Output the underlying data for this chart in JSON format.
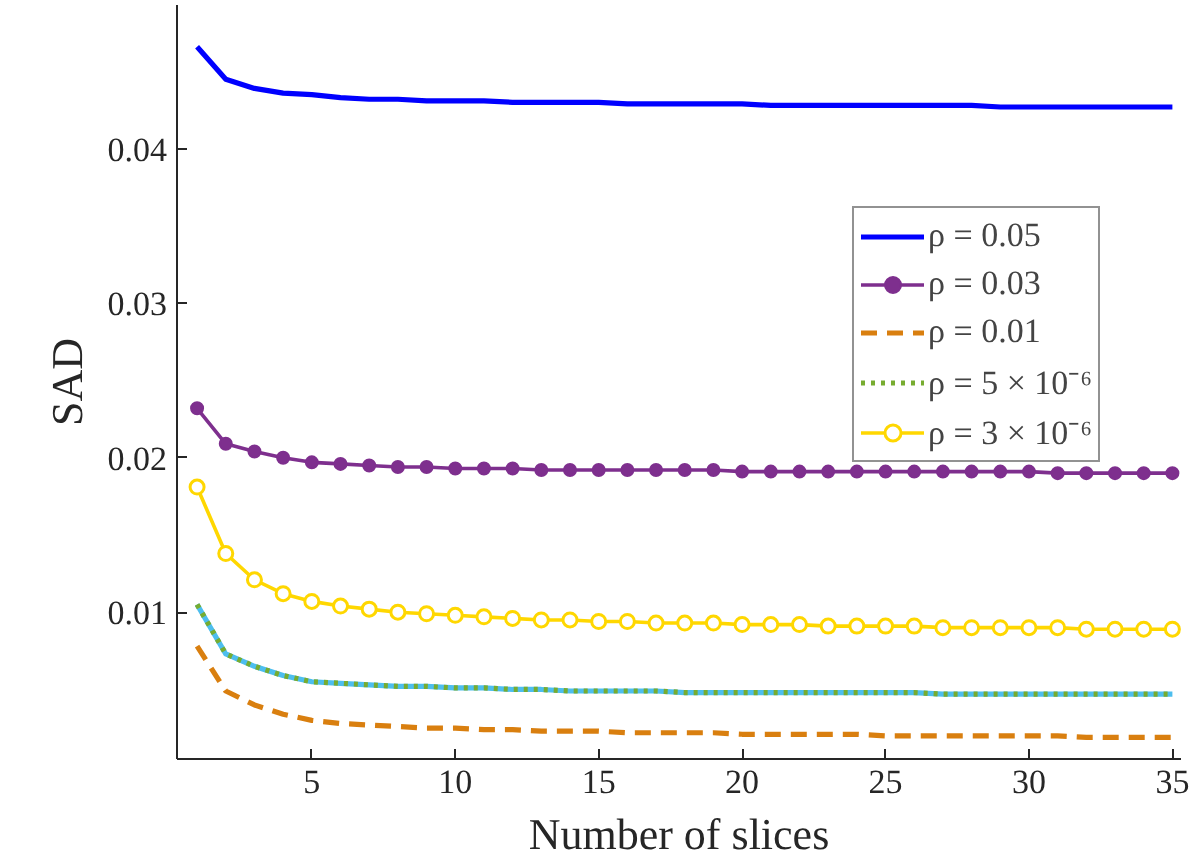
{
  "chart_data": {
    "type": "line",
    "xlabel": "Number of slices",
    "ylabel": "SAD",
    "x": [
      1,
      2,
      3,
      4,
      5,
      6,
      7,
      8,
      9,
      10,
      11,
      12,
      13,
      14,
      15,
      16,
      17,
      18,
      19,
      20,
      21,
      22,
      23,
      24,
      25,
      26,
      27,
      28,
      29,
      30,
      31,
      32,
      33,
      34,
      35
    ],
    "xlim": [
      0.3,
      35.3
    ],
    "ylim": [
      0.0005,
      0.0493
    ],
    "xticks": [
      5,
      10,
      15,
      20,
      25,
      30,
      35
    ],
    "yticks": [
      0.01,
      0.02,
      0.03,
      0.04
    ],
    "grid": false,
    "legend": "top right",
    "series": [
      {
        "name": "ρ = 0.05",
        "color": "#0000ff",
        "line_style": "solid",
        "marker": "none",
        "values": [
          0.0466,
          0.0445,
          0.0439,
          0.0436,
          0.0435,
          0.0433,
          0.0432,
          0.0432,
          0.0431,
          0.0431,
          0.0431,
          0.043,
          0.043,
          0.043,
          0.043,
          0.0429,
          0.0429,
          0.0429,
          0.0429,
          0.0429,
          0.0428,
          0.0428,
          0.0428,
          0.0428,
          0.0428,
          0.0428,
          0.0428,
          0.0428,
          0.0427,
          0.0427,
          0.0427,
          0.0427,
          0.0427,
          0.0427,
          0.0427
        ]
      },
      {
        "name": "ρ = 0.03",
        "color": "#7e2f8e",
        "line_style": "solid",
        "marker": "circle",
        "values": [
          0.0232,
          0.0209,
          0.0204,
          0.02,
          0.0197,
          0.0196,
          0.0195,
          0.0194,
          0.0194,
          0.0193,
          0.0193,
          0.0193,
          0.0192,
          0.0192,
          0.0192,
          0.0192,
          0.0192,
          0.0192,
          0.0192,
          0.0191,
          0.0191,
          0.0191,
          0.0191,
          0.0191,
          0.0191,
          0.0191,
          0.0191,
          0.0191,
          0.0191,
          0.0191,
          0.019,
          0.019,
          0.019,
          0.019,
          0.019
        ]
      },
      {
        "name": "ρ = 0.01",
        "color": "#d97f0f",
        "line_style": "dashed",
        "marker": "none",
        "values": [
          0.0078,
          0.0049,
          0.004,
          0.0034,
          0.003,
          0.0028,
          0.0027,
          0.0026,
          0.0025,
          0.0025,
          0.0024,
          0.0024,
          0.0023,
          0.0023,
          0.0023,
          0.0022,
          0.0022,
          0.0022,
          0.0022,
          0.0021,
          0.0021,
          0.0021,
          0.0021,
          0.0021,
          0.002,
          0.002,
          0.002,
          0.002,
          0.002,
          0.002,
          0.002,
          0.0019,
          0.0019,
          0.0019,
          0.0019
        ]
      },
      {
        "color": "#4dbeee",
        "line_style": "solid",
        "marker": "none",
        "values": [
          0.0105,
          0.0073,
          0.0065,
          0.0059,
          0.0055,
          0.0054,
          0.0053,
          0.0052,
          0.0052,
          0.0051,
          0.0051,
          0.005,
          0.005,
          0.0049,
          0.0049,
          0.0049,
          0.0049,
          0.0048,
          0.0048,
          0.0048,
          0.0048,
          0.0048,
          0.0048,
          0.0048,
          0.0048,
          0.0048,
          0.0047,
          0.0047,
          0.0047,
          0.0047,
          0.0047,
          0.0047,
          0.0047,
          0.0047,
          0.0047
        ]
      },
      {
        "name": "ρ = 5 × 10⁻⁶",
        "color": "#77ac30",
        "line_style": "dotted",
        "marker": "none",
        "values": [
          0.0105,
          0.0073,
          0.0065,
          0.0059,
          0.0055,
          0.0054,
          0.0053,
          0.0052,
          0.0052,
          0.0051,
          0.0051,
          0.005,
          0.005,
          0.0049,
          0.0049,
          0.0049,
          0.0049,
          0.0048,
          0.0048,
          0.0048,
          0.0048,
          0.0048,
          0.0048,
          0.0048,
          0.0048,
          0.0048,
          0.0047,
          0.0047,
          0.0047,
          0.0047,
          0.0047,
          0.0047,
          0.0047,
          0.0047,
          0.0047
        ]
      },
      {
        "name": "ρ = 3 × 10⁻⁶",
        "color": "#ffd700",
        "line_style": "solid",
        "marker": "open_circle",
        "values": [
          0.0181,
          0.0138,
          0.0121,
          0.0112,
          0.0107,
          0.0104,
          0.0102,
          0.01,
          0.0099,
          0.0098,
          0.0097,
          0.0096,
          0.0095,
          0.0095,
          0.0094,
          0.0094,
          0.0093,
          0.0093,
          0.0093,
          0.0092,
          0.0092,
          0.0092,
          0.0091,
          0.0091,
          0.0091,
          0.0091,
          0.009,
          0.009,
          0.009,
          0.009,
          0.009,
          0.0089,
          0.0089,
          0.0089,
          0.0089
        ]
      }
    ]
  }
}
